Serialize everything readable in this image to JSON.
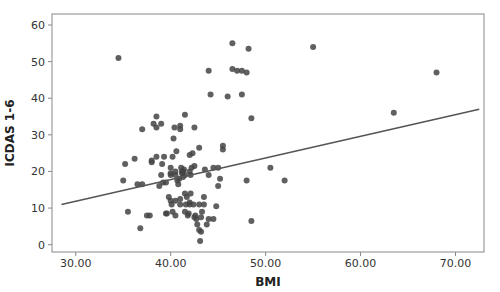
{
  "chart_data": {
    "type": "scatter",
    "xlabel": "BMI",
    "ylabel": "ICDAS 1-6",
    "xlim": [
      27.5,
      73
    ],
    "ylim": [
      -2,
      63
    ],
    "xticks": [
      {
        "value": 30.0,
        "label": "30.00"
      },
      {
        "value": 40.0,
        "label": "40.00"
      },
      {
        "value": 50.0,
        "label": "50.00"
      },
      {
        "value": 60.0,
        "label": "60.00"
      },
      {
        "value": 70.0,
        "label": "70.00"
      }
    ],
    "yticks": [
      0,
      10,
      20,
      30,
      40,
      50,
      60
    ],
    "series": [
      {
        "type": "scatter",
        "color": "#444444",
        "x": [
          35.2,
          36.8,
          37.5,
          38.0,
          38.2,
          38.5,
          38.8,
          39.0,
          39.1,
          39.3,
          39.5,
          39.6,
          39.8,
          40.0,
          40.0,
          40.1,
          40.2,
          40.3,
          40.4,
          40.5,
          40.5,
          40.6,
          40.7,
          40.8,
          40.9,
          41.0,
          41.0,
          41.1,
          41.2,
          41.2,
          41.3,
          41.4,
          41.5,
          41.5,
          41.6,
          41.7,
          41.8,
          41.9,
          42.0,
          42.0,
          42.1,
          42.2,
          42.3,
          42.4,
          42.5,
          42.6,
          42.7,
          42.8,
          43.0,
          43.1,
          43.2,
          43.3,
          43.5,
          43.6,
          43.8,
          44.0,
          44.2,
          44.5,
          44.8,
          45.0,
          45.2,
          45.5,
          46.0,
          46.5,
          47.0,
          47.5,
          48.0,
          48.5,
          35.5,
          36.2,
          37.0,
          37.8,
          38.5,
          39.2,
          40.0,
          40.5,
          41.0,
          41.5,
          42.0,
          42.5,
          43.0,
          43.5,
          44.0,
          44.5,
          45.0,
          38.0,
          39.0,
          40.0,
          41.0,
          42.0,
          40.5,
          41.5,
          42.5,
          43.0,
          44.0,
          45.5,
          46.5,
          63.5,
          35.0,
          37.0,
          38.5,
          39.5,
          40.2,
          41.3,
          42.1,
          43.2,
          48.5,
          48.2,
          36.5,
          34.5,
          50.5,
          52.0,
          47.5,
          48.0,
          55.0,
          68.0
        ],
        "values": [
          22.0,
          4.5,
          8.0,
          22.5,
          33.0,
          35.0,
          16.0,
          33.0,
          22.0,
          24.0,
          17.0,
          8.5,
          13.0,
          19.0,
          12.0,
          11.0,
          24.0,
          29.0,
          32.0,
          19.0,
          12.0,
          25.5,
          17.5,
          16.5,
          18.0,
          31.5,
          11.0,
          21.0,
          20.0,
          19.5,
          18.5,
          20.5,
          9.0,
          14.0,
          11.0,
          13.0,
          8.0,
          8.5,
          11.5,
          20.0,
          19.0,
          21.0,
          25.0,
          11.0,
          7.5,
          8.0,
          7.0,
          5.5,
          4.0,
          1.0,
          3.5,
          9.0,
          13.0,
          20.5,
          5.5,
          47.5,
          41.0,
          21.0,
          10.5,
          21.0,
          18.0,
          27.0,
          40.5,
          48.0,
          47.5,
          41.0,
          17.5,
          34.5,
          9.0,
          23.5,
          16.5,
          8.0,
          24.0,
          17.0,
          19.5,
          8.0,
          12.5,
          35.5,
          24.5,
          32.0,
          11.0,
          11.0,
          19.0,
          7.0,
          16.0,
          23.0,
          19.0,
          21.0,
          32.5,
          11.0,
          20.0,
          19.0,
          21.5,
          26.5,
          7.0,
          26.0,
          55.0,
          36.0,
          17.5,
          31.5,
          32.0,
          8.5,
          9.0,
          20.0,
          14.0,
          7.5,
          6.5,
          53.5,
          16.5,
          51.0,
          21.0,
          17.5,
          47.5,
          47.0,
          54.0,
          47.0
        ]
      },
      {
        "type": "line",
        "color": "#555555",
        "x": [
          28.5,
          72.5
        ],
        "values": [
          11.0,
          37.0
        ]
      }
    ]
  }
}
